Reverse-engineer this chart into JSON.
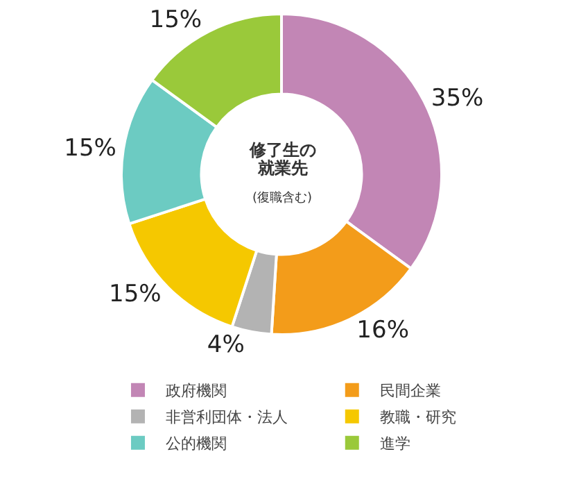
{
  "chart_data": {
    "type": "donut",
    "annotations": [
      "修了生の",
      "就業先",
      "(復職含む)"
    ],
    "categories": [
      "政府機関",
      "民間企業",
      "非営利団体・法人",
      "教職・研究",
      "公的機関",
      "進学"
    ],
    "values": [
      35,
      16,
      4,
      15,
      15,
      15
    ],
    "value_labels": [
      "35%",
      "16%",
      "4%",
      "15%",
      "15%",
      "15%"
    ],
    "colors": [
      "#c286b5",
      "#f39c1a",
      "#b3b3b3",
      "#f5c800",
      "#6ccbc2",
      "#9ac93a"
    ],
    "legend": "bottom"
  }
}
